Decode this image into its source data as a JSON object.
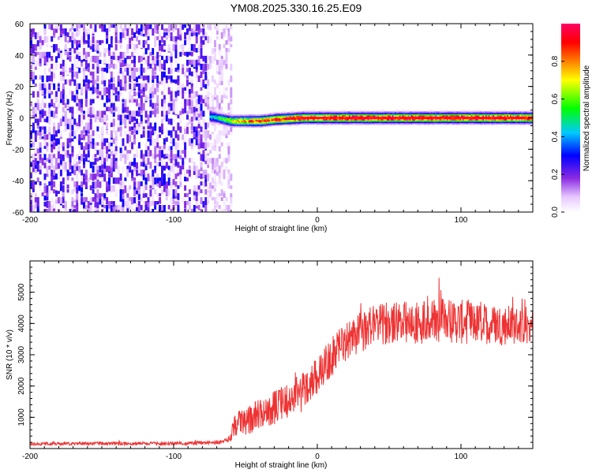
{
  "figure": {
    "title": "YM08.2025.330.16.25.E09"
  },
  "chart_data": [
    {
      "type": "heatmap",
      "title": "YM08.2025.330.16.25.E09",
      "xlabel": "Height of straight line (km)",
      "ylabel": "Frequency (Hz)",
      "xlim": [
        -200,
        150
      ],
      "ylim": [
        -60,
        60
      ],
      "x_ticks": [
        -200,
        -100,
        0,
        100
      ],
      "x_tick_labels": [
        "-200",
        "-100",
        "0",
        "100"
      ],
      "y_ticks": [
        -60,
        -40,
        -20,
        0,
        20,
        40,
        60
      ],
      "y_tick_labels": [
        "-60",
        "-40",
        "-20",
        "0",
        "20",
        "40",
        "60"
      ],
      "noise_region": {
        "x_from": -200,
        "x_to": -60,
        "amplitude_range": [
          0.0,
          0.3
        ]
      },
      "signal_band": {
        "x": [
          -75,
          -70,
          -65,
          -60,
          -50,
          -40,
          -30,
          -20,
          -10,
          0,
          20,
          40,
          60,
          80,
          100,
          120,
          150
        ],
        "center_hz": [
          1,
          0,
          -1,
          -2,
          -2,
          -2,
          -1,
          -0.5,
          0,
          0,
          0,
          0,
          0,
          0,
          0,
          0,
          0
        ],
        "half_width_hz": [
          5,
          4,
          4,
          4,
          4,
          4,
          4,
          4,
          4,
          4,
          4,
          4,
          4,
          4,
          4,
          4,
          4
        ],
        "peak_amplitude": [
          0.4,
          0.5,
          0.6,
          0.7,
          0.8,
          0.85,
          0.9,
          0.95,
          0.97,
          0.98,
          1.0,
          1.0,
          1.0,
          1.0,
          1.0,
          1.0,
          1.0
        ]
      },
      "colorbar": {
        "label": "Normalized spectral amplitude",
        "range": [
          0,
          1
        ],
        "ticks": [
          0.0,
          0.2,
          0.4,
          0.6,
          0.8
        ],
        "tick_labels": [
          "0.0",
          "0.2",
          "0.4",
          "0.6",
          "0.8"
        ],
        "colors": [
          "#ffffff",
          "#d6a8ff",
          "#8a2be2",
          "#0000ff",
          "#00c8ff",
          "#00ff00",
          "#ffff00",
          "#ff8000",
          "#ff0000",
          "#ff0066"
        ]
      }
    },
    {
      "type": "line",
      "xlabel": "Height of straight line (km)",
      "ylabel": "SNR (10 * v/v)",
      "xlim": [
        -200,
        150
      ],
      "ylim": [
        0,
        6000
      ],
      "x_ticks": [
        -200,
        -100,
        0,
        100
      ],
      "x_tick_labels": [
        "-200",
        "-100",
        "0",
        "100"
      ],
      "y_ticks": [
        1000,
        2000,
        3000,
        4000,
        5000
      ],
      "y_tick_labels": [
        "1000",
        "2000",
        "3000",
        "4000",
        "5000"
      ],
      "series": [
        {
          "name": "SNR",
          "color": "#ee3333",
          "x": [
            -200,
            -180,
            -160,
            -140,
            -120,
            -100,
            -80,
            -70,
            -62,
            -58,
            -55,
            -50,
            -45,
            -40,
            -35,
            -30,
            -25,
            -20,
            -15,
            -10,
            -5,
            0,
            5,
            10,
            15,
            20,
            25,
            30,
            35,
            40,
            50,
            60,
            70,
            80,
            90,
            100,
            110,
            120,
            130,
            140,
            150
          ],
          "values": [
            150,
            150,
            160,
            160,
            160,
            160,
            180,
            200,
            250,
            700,
            900,
            800,
            1000,
            1100,
            1200,
            1300,
            1450,
            1500,
            1700,
            1900,
            2100,
            2350,
            2650,
            2900,
            3200,
            3400,
            3600,
            3700,
            3850,
            3950,
            4000,
            4050,
            4050,
            4100,
            4100,
            4050,
            4000,
            4000,
            3950,
            3950,
            3900
          ],
          "spread": [
            80,
            80,
            90,
            90,
            90,
            90,
            100,
            100,
            120,
            600,
            700,
            700,
            800,
            800,
            800,
            900,
            900,
            900,
            900,
            900,
            1000,
            1000,
            1000,
            1000,
            1000,
            1000,
            1000,
            1100,
            1100,
            1100,
            1100,
            1100,
            1200,
            1200,
            1200,
            1200,
            1100,
            1100,
            1100,
            1000,
            1000
          ]
        }
      ]
    }
  ]
}
